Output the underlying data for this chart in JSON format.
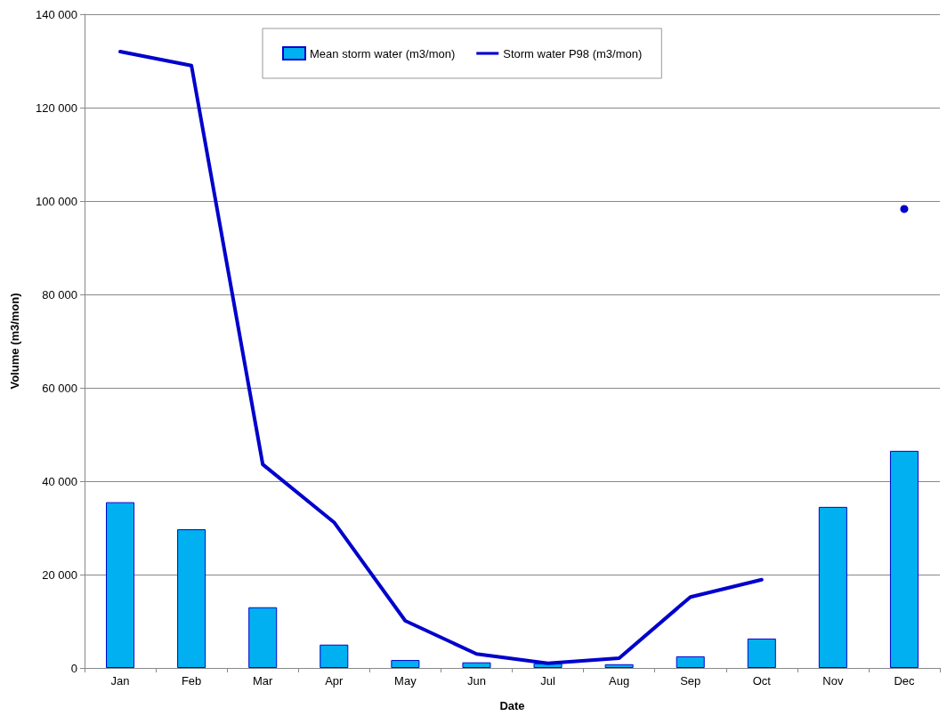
{
  "chart_data": {
    "type": "bar",
    "xlabel": "Date",
    "ylabel": "Volume (m3/mon)",
    "categories": [
      "Jan",
      "Feb",
      "Mar",
      "Apr",
      "May",
      "Jun",
      "Jul",
      "Aug",
      "Sep",
      "Oct",
      "Nov",
      "Dec"
    ],
    "series": [
      {
        "name": "Mean storm water (m3/mon)",
        "color": "#00b0f0",
        "values": [
          35500,
          29700,
          13000,
          5000,
          1700,
          1200,
          1000,
          800,
          2500,
          6300,
          34500,
          46500
        ]
      },
      {
        "name": "Storm water P98 (m3/mon)",
        "type": "line",
        "color": "#0000cc",
        "values": [
          132000,
          129000,
          43600,
          31200,
          10100,
          3000,
          1000,
          2100,
          15200,
          18900,
          null,
          98300
        ]
      }
    ],
    "ylim": [
      0,
      140000
    ],
    "yticks": [
      0,
      {
        "value": 20000,
        "label": "20 000"
      },
      {
        "value": 40000,
        "label": "40 000"
      },
      {
        "value": 60000,
        "label": "60 000"
      },
      {
        "value": 80000,
        "label": "80 000"
      },
      {
        "value": 100000,
        "label": "100 000"
      },
      {
        "value": 120000,
        "label": "120 000"
      },
      {
        "value": 140000,
        "label": "140 000"
      }
    ],
    "grid": "y",
    "legend": "top",
    "marker": "none",
    "line_style": "solid"
  }
}
